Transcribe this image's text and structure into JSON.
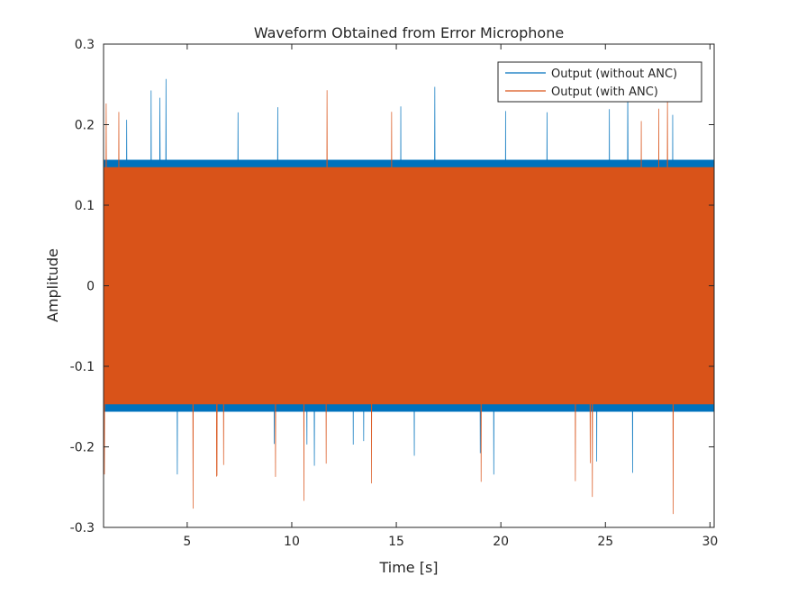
{
  "chart_data": {
    "type": "line",
    "title": "Waveform Obtained from Error Microphone",
    "xlabel": "Time [s]",
    "ylabel": "Amplitude",
    "xlim": [
      1,
      30.2
    ],
    "ylim": [
      -0.3,
      0.3
    ],
    "xticks": [
      5,
      10,
      15,
      20,
      25,
      30
    ],
    "yticks": [
      -0.3,
      -0.2,
      -0.1,
      0,
      0.1,
      0.2,
      0.3
    ],
    "xtick_labels": [
      "5",
      "10",
      "15",
      "20",
      "25",
      "30"
    ],
    "ytick_labels": [
      "-0.3",
      "-0.2",
      "-0.1",
      "0",
      "0.1",
      "0.2",
      "0.3"
    ],
    "grid": false,
    "legend_position": "top-right",
    "series": [
      {
        "name": "Output (without ANC)",
        "color": "#0072BD",
        "typical_range": [
          -0.17,
          0.17
        ],
        "peak_range": [
          -0.25,
          0.27
        ]
      },
      {
        "name": "Output (with ANC)",
        "color": "#D95319",
        "typical_range": [
          -0.16,
          0.16
        ],
        "peak_range": [
          -0.29,
          0.26
        ]
      }
    ]
  }
}
